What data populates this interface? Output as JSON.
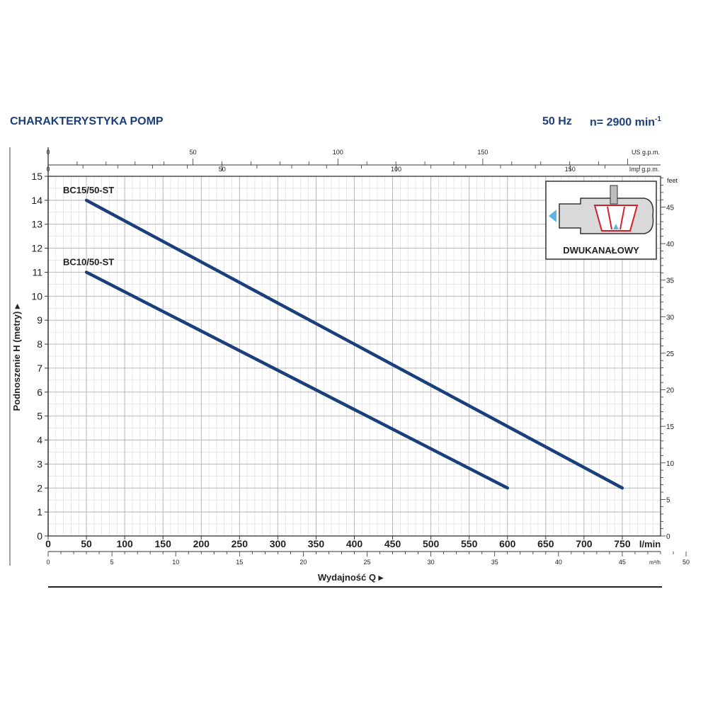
{
  "header": {
    "title": "CHARAKTERYSTYKA POMP",
    "frequency": "50 Hz",
    "speed": "n= 2900 min",
    "speed_exp": "-1"
  },
  "chart_data": {
    "type": "line",
    "ylabel": "Podnoszenie H (metry)",
    "xlabel": "Wydajność Q",
    "x_unit": "l/min",
    "x_ticks": [
      0,
      50,
      100,
      150,
      200,
      250,
      300,
      350,
      400,
      450,
      500,
      550,
      600,
      650,
      700,
      750
    ],
    "y_ticks": [
      0,
      1,
      2,
      3,
      4,
      5,
      6,
      7,
      8,
      9,
      10,
      11,
      12,
      13,
      14,
      15
    ],
    "xlim": [
      0,
      800
    ],
    "ylim": [
      0,
      15
    ],
    "grid": true,
    "series": [
      {
        "name": "BC15/50-ST",
        "x": [
          50,
          750
        ],
        "y": [
          14,
          2
        ]
      },
      {
        "name": "BC10/50-ST",
        "x": [
          50,
          600
        ],
        "y": [
          11,
          2
        ]
      }
    ],
    "secondary_axes": {
      "m3h": {
        "unit": "m³/h",
        "ticks": [
          0,
          5,
          10,
          15,
          20,
          25,
          30,
          35,
          40,
          45,
          50
        ]
      },
      "us_gpm": {
        "unit": "US g.p.m.",
        "ticks": [
          0,
          50,
          100,
          150
        ]
      },
      "imp_gpm": {
        "unit": "Imp g.p.m.",
        "ticks": [
          0,
          50,
          100,
          150
        ]
      },
      "feet": {
        "unit": "feet",
        "ticks": [
          0,
          5,
          10,
          15,
          20,
          25,
          30,
          35,
          40,
          45
        ]
      }
    },
    "inset_label": "DWUKANAŁOWY",
    "line_color": "#1b3f7a"
  }
}
